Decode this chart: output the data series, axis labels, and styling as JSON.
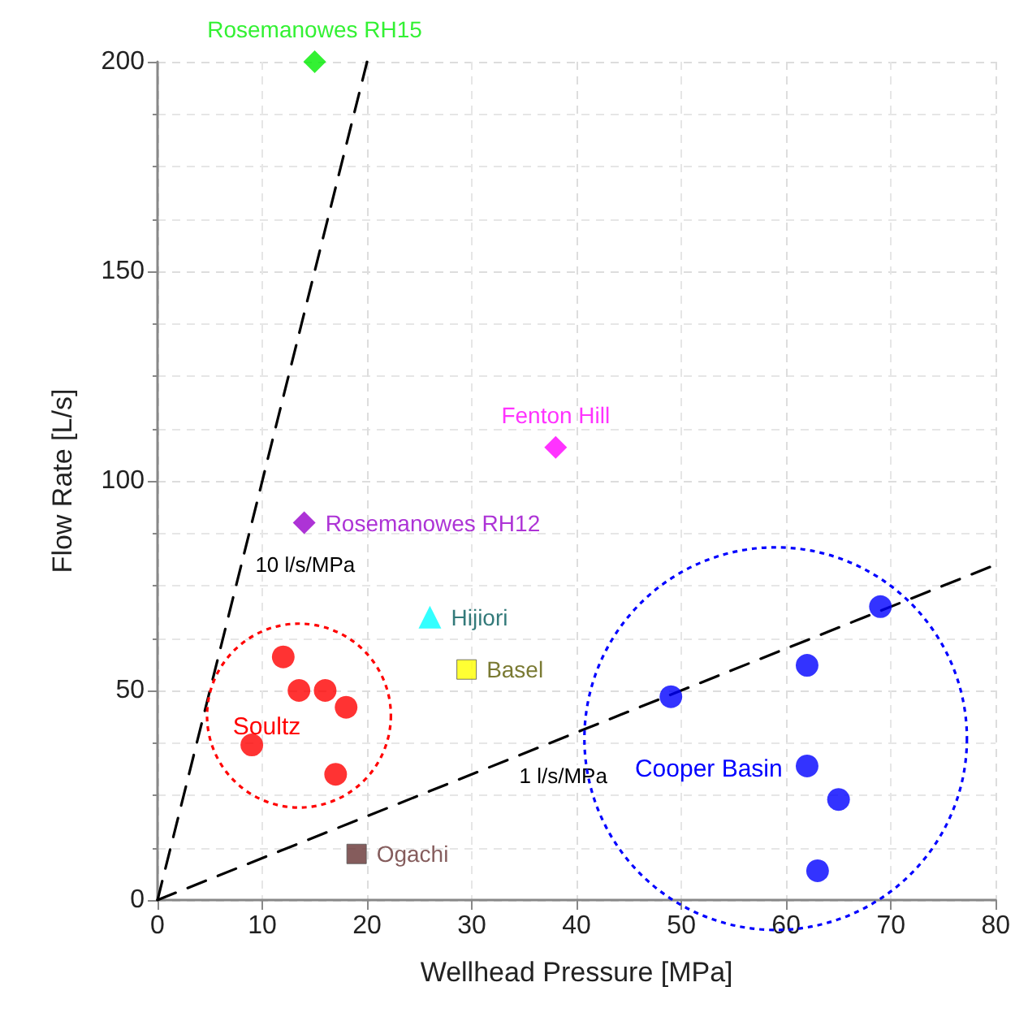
{
  "chart_data": {
    "type": "scatter",
    "xlabel": "Wellhead Pressure [MPa]",
    "ylabel": "Flow Rate [L/s]",
    "xlim": [
      0,
      80
    ],
    "ylim": [
      0,
      200
    ],
    "xticks": [
      0,
      10,
      20,
      30,
      40,
      50,
      60,
      70,
      80
    ],
    "yticks": [
      0,
      50,
      100,
      150,
      200
    ],
    "grid": true,
    "legend": false,
    "series": [
      {
        "name": "Soultz",
        "color": "#ff0000",
        "marker": "circle",
        "x": [
          12,
          13.5,
          16,
          18,
          9,
          17
        ],
        "values": [
          58,
          50,
          50,
          46,
          37,
          30
        ]
      },
      {
        "name": "Cooper Basin",
        "color": "#0000ff",
        "marker": "circle",
        "x": [
          49,
          62,
          62,
          65,
          63,
          69
        ],
        "values": [
          48.5,
          56,
          32,
          24,
          7,
          70
        ]
      },
      {
        "name": "Rosemanowes RH15",
        "color": "#00ee00",
        "marker": "diamond",
        "x": [
          15
        ],
        "values": [
          200
        ]
      },
      {
        "name": "Fenton Hill",
        "color": "#ff00ff",
        "marker": "diamond",
        "x": [
          38
        ],
        "values": [
          108
        ]
      },
      {
        "name": "Rosemanowes RH12",
        "color": "#9900cc",
        "marker": "diamond",
        "x": [
          14
        ],
        "values": [
          90
        ]
      },
      {
        "name": "Hijiori",
        "color": "#00ffff",
        "marker": "triangle",
        "x": [
          26
        ],
        "values": [
          67.5
        ]
      },
      {
        "name": "Basel",
        "color": "#ffff00",
        "marker": "square",
        "x": [
          29.5
        ],
        "values": [
          55
        ]
      },
      {
        "name": "Ogachi",
        "color": "#663333",
        "marker": "square",
        "x": [
          19
        ],
        "values": [
          11
        ]
      },
      {
        "type": "line",
        "name": "10 l/s/MPa",
        "color": "#000000",
        "marker": "none",
        "line_style": "dashed",
        "x": [
          0,
          20
        ],
        "values": [
          0,
          200
        ]
      },
      {
        "type": "line",
        "name": "1 l/s/MPa",
        "color": "#000000",
        "marker": "none",
        "line_style": "dashed",
        "x": [
          0,
          80
        ],
        "values": [
          0,
          80
        ]
      }
    ]
  }
}
